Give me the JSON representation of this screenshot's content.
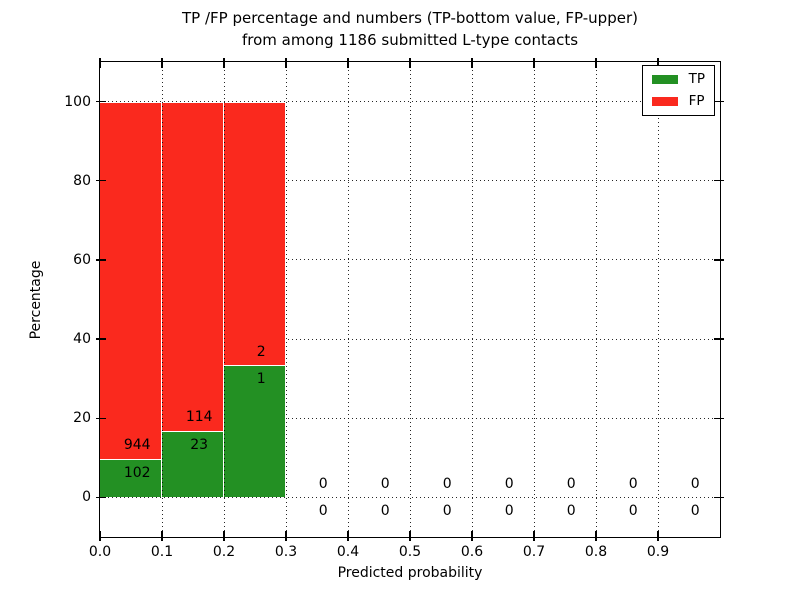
{
  "title": {
    "line1": "TP /FP percentage and numbers (TP-bottom value, FP-upper)",
    "line2": "from among 1186 submitted L-type contacts"
  },
  "axes": {
    "ylabel": "Percentage",
    "xlabel": "Predicted probability",
    "yticks": [
      0,
      20,
      40,
      60,
      80,
      100
    ],
    "xticks": [
      "0.0",
      "0.1",
      "0.2",
      "0.3",
      "0.4",
      "0.5",
      "0.6",
      "0.7",
      "0.8",
      "0.9"
    ],
    "ylim": [
      -10,
      110
    ],
    "xlim": [
      0.0,
      1.0
    ],
    "grid": "dotted"
  },
  "legend": {
    "items": [
      {
        "label": "TP",
        "color": "#239023"
      },
      {
        "label": "FP",
        "color": "#fa291e"
      }
    ],
    "position": "upper-right"
  },
  "chart_data": {
    "type": "bar",
    "stacked": true,
    "normalized_to_percent": true,
    "title": "TP /FP percentage and numbers (TP-bottom value, FP-upper) from among 1186 submitted L-type contacts",
    "xlabel": "Predicted probability",
    "ylabel": "Percentage",
    "total_contacts": 1186,
    "colors": {
      "tp": "#239023",
      "fp": "#fa291e",
      "bar_edge": "#ffffff"
    },
    "series_names": [
      "TP",
      "FP"
    ],
    "bins": [
      {
        "x_start": 0.0,
        "x_end": 0.1,
        "tp": 102,
        "fp": 944,
        "tp_pct": 9.75,
        "fp_pct": 90.25
      },
      {
        "x_start": 0.1,
        "x_end": 0.2,
        "tp": 23,
        "fp": 114,
        "tp_pct": 16.79,
        "fp_pct": 83.21
      },
      {
        "x_start": 0.2,
        "x_end": 0.3,
        "tp": 1,
        "fp": 2,
        "tp_pct": 33.33,
        "fp_pct": 66.67
      },
      {
        "x_start": 0.3,
        "x_end": 0.4,
        "tp": 0,
        "fp": 0,
        "tp_pct": 0,
        "fp_pct": 0
      },
      {
        "x_start": 0.4,
        "x_end": 0.5,
        "tp": 0,
        "fp": 0,
        "tp_pct": 0,
        "fp_pct": 0
      },
      {
        "x_start": 0.5,
        "x_end": 0.6,
        "tp": 0,
        "fp": 0,
        "tp_pct": 0,
        "fp_pct": 0
      },
      {
        "x_start": 0.6,
        "x_end": 0.7,
        "tp": 0,
        "fp": 0,
        "tp_pct": 0,
        "fp_pct": 0
      },
      {
        "x_start": 0.7,
        "x_end": 0.8,
        "tp": 0,
        "fp": 0,
        "tp_pct": 0,
        "fp_pct": 0
      },
      {
        "x_start": 0.8,
        "x_end": 0.9,
        "tp": 0,
        "fp": 0,
        "tp_pct": 0,
        "fp_pct": 0
      },
      {
        "x_start": 0.9,
        "x_end": 1.0,
        "tp": 0,
        "fp": 0,
        "tp_pct": 0,
        "fp_pct": 0
      }
    ]
  }
}
